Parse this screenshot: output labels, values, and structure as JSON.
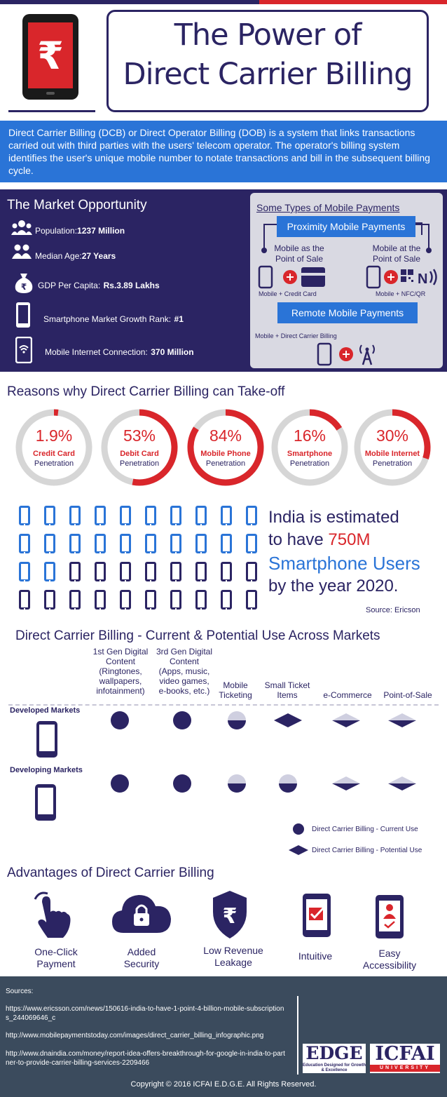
{
  "header": {
    "title_line1": "The Power of",
    "title_line2": "Direct Carrier Billing",
    "phone_symbol": "₹",
    "colors": {
      "navy": "#2b2463",
      "red": "#d9262b",
      "blue": "#2a74d7",
      "footer": "#3b4b5d"
    }
  },
  "intro": {
    "text": "Direct Carrier Billing (DCB) or Direct Operator Billing (DOB) is a system that links transactions carried out with third parties with the users' telecom operator. The operator's billing system identifies the user's unique mobile number to notate transactions and bill in the subsequent billing cycle."
  },
  "market": {
    "title": "The Market Opportunity",
    "stats": [
      {
        "icon": "people-icon",
        "label": "Population:",
        "value": "1237 Million"
      },
      {
        "icon": "two-people-icon",
        "label": "Median Age:",
        "value": "27 Years"
      },
      {
        "icon": "money-bag-icon",
        "label": "GDP Per Capita:",
        "value": "Rs.3.89 Lakhs"
      },
      {
        "icon": "smartphone-icon",
        "label": "Smartphone Market Growth Rank:",
        "value": "#1"
      },
      {
        "icon": "mobile-wifi-icon",
        "label": "Mobile Internet Connection:",
        "value": "370 Million"
      }
    ]
  },
  "payments": {
    "title": "Some Types of Mobile Payments",
    "proximity": "Proximity Mobile Payments",
    "left_branch": "Mobile as the Point of Sale",
    "right_branch": "Mobile at the Point of Sale",
    "left_caption": "Mobile + Credit Card",
    "right_caption": "Mobile + NFC/QR",
    "remote": "Remote Mobile Payments",
    "remote_caption": "Mobile + Direct Carrier Billing"
  },
  "reasons": {
    "title": "Reasons why Direct Carrier Billing can Take-off",
    "gauges": [
      {
        "pct_text": "1.9%",
        "value": 1.9,
        "label": "Credit Card",
        "sub": "Penetration"
      },
      {
        "pct_text": "53%",
        "value": 53,
        "label": "Debit Card",
        "sub": "Penetration"
      },
      {
        "pct_text": "84%",
        "value": 84,
        "label": "Mobile Phone",
        "sub": "Penetration"
      },
      {
        "pct_text": "16%",
        "value": 16,
        "label": "Smartphone",
        "sub": "Penetration"
      },
      {
        "pct_text": "30%",
        "value": 30,
        "label": "Mobile Internet",
        "sub": "Penetration"
      }
    ]
  },
  "smartphones": {
    "line1": "India is estimated",
    "line2_prefix": "to have ",
    "line2_highlight": "750M",
    "line3": "Smartphone Users",
    "line4": "by the year 2020.",
    "source": "Source: Ericson",
    "grid_total": 40,
    "grid_highlighted": 22
  },
  "uses": {
    "title": "Direct Carrier Billing - Current & Potential Use Across Markets",
    "columns": [
      "1st Gen Digital\nContent\n(Ringtones,\nwallpapers,\ninfotainment)",
      "3rd Gen Digital\nContent\n(Apps, music,\nvideo games,\ne-books, etc.)",
      "Mobile\nTicketing",
      "Small Ticket\nItems",
      "e-Commerce",
      "Point-of-Sale"
    ],
    "developed_label": "Developed Markets",
    "developing_label": "Developing Markets",
    "developed": [
      "current",
      "current",
      "half-current",
      "potential",
      "half-potential",
      "half-potential"
    ],
    "developing": [
      "current",
      "current",
      "half-current",
      "half-current",
      "half-potential",
      "half-potential"
    ],
    "legend_current": "Direct Carrier Billing - Current Use",
    "legend_potential": "Direct Carrier Billing - Potential Use"
  },
  "advantages": {
    "title": "Advantages of Direct Carrier Billing",
    "items": [
      {
        "icon": "hand-click-icon",
        "label": "One-Click\nPayment"
      },
      {
        "icon": "cloud-lock-icon",
        "label": "Added\nSecurity"
      },
      {
        "icon": "rupee-shield-icon",
        "label": "Low Revenue\nLeakage"
      },
      {
        "icon": "phone-check-icon",
        "label": "Intuitive"
      },
      {
        "icon": "phone-person-icon",
        "label": "Easy\nAccessibility"
      }
    ]
  },
  "footer": {
    "sources_label": "Sources:",
    "source1": "https://www.ericsson.com/news/150616-india-to-have-1-point-4-billion-mobile-subscriptions_244069646_c",
    "source2": "http://www.mobilepaymentstoday.com/images/direct_carrier_billing_infographic.png",
    "source3": "http://www.dnaindia.com/money/report-idea-offers-breakthrough-for-google-in-india-to-partner-to-provide-carrier-billing-services-2209466",
    "edge_logo": "EDGE",
    "edge_tagline": "Education Designed for Growth & Excellence",
    "icfai_logo": "ICFAI",
    "icfai_tagline": "UNIVERSITY",
    "copyright": "Copyright © 2016 ICFAI E.D.G.E. All Rights Reserved."
  }
}
